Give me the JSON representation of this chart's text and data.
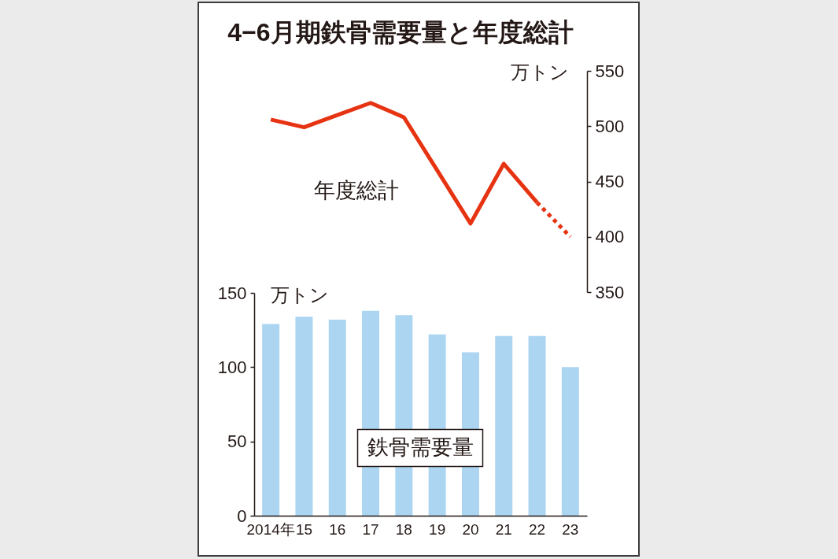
{
  "chart_data": [
    {
      "type": "line",
      "title": "4−6月期鉄骨需要量と年度総計",
      "ylabel": "万トン",
      "tick_labels": "y",
      "categories": [
        "2014年",
        "15",
        "16",
        "17",
        "18",
        "19",
        "20",
        "21",
        "22",
        "23"
      ],
      "series": [
        {
          "name": "年度総計",
          "color": "#e63312",
          "line_style": "solid",
          "values": [
            506,
            499,
            510,
            521,
            508,
            460,
            412,
            466,
            431,
            null
          ]
        },
        {
          "color": "#e63312",
          "line_style": "dotted",
          "values": [
            null,
            null,
            null,
            null,
            null,
            null,
            null,
            null,
            431,
            400
          ]
        }
      ],
      "ylim": [
        350,
        550
      ],
      "yticks": [
        350,
        400,
        450,
        500,
        550
      ]
    },
    {
      "type": "bar",
      "ylabel": "万トン",
      "categories": [
        "2014年",
        "15",
        "16",
        "17",
        "18",
        "19",
        "20",
        "21",
        "22",
        "23"
      ],
      "series": [
        {
          "name": "鉄骨需要量",
          "color": "#acd5f1",
          "values": [
            129,
            134,
            132,
            138,
            135,
            122,
            110,
            121,
            121,
            100
          ]
        }
      ],
      "ylim": [
        0,
        150
      ],
      "yticks": [
        0,
        50,
        100,
        150
      ]
    }
  ]
}
